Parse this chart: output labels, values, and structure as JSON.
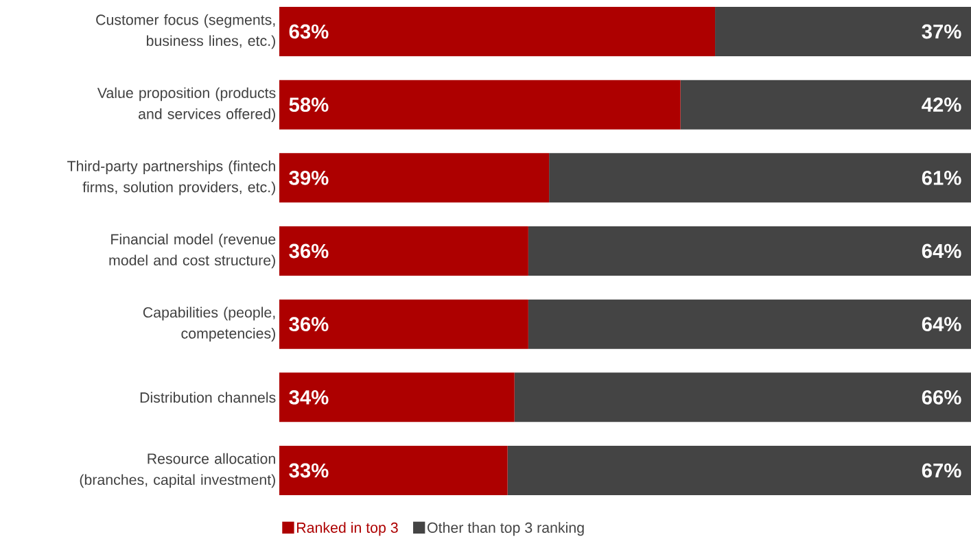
{
  "chart_data": {
    "type": "bar",
    "orientation": "horizontal",
    "stacked": true,
    "legend": "bottom",
    "categories": [
      "Customer focus (segments, business lines, etc.)",
      "Value proposition (products and services offered)",
      "Third-party partnerships (fintech firms, solution providers, etc.)",
      "Financial model (revenue model and cost structure)",
      "Capabilities (people, competencies)",
      "Distribution channels",
      "Resource allocation (branches, capital investment)"
    ],
    "series": [
      {
        "name": "Ranked in top 3",
        "color": "#ad0000",
        "values": [
          63,
          58,
          39,
          36,
          36,
          34,
          33
        ],
        "value_labels": [
          "63%",
          "58%",
          "39%",
          "36%",
          "36%",
          "34%",
          "33%"
        ]
      },
      {
        "name": "Other than top 3 ranking",
        "color": "#444444",
        "values": [
          37,
          42,
          61,
          64,
          64,
          66,
          67
        ],
        "value_labels": [
          "37%",
          "42%",
          "61%",
          "64%",
          "64%",
          "66%",
          "67%"
        ]
      }
    ]
  }
}
